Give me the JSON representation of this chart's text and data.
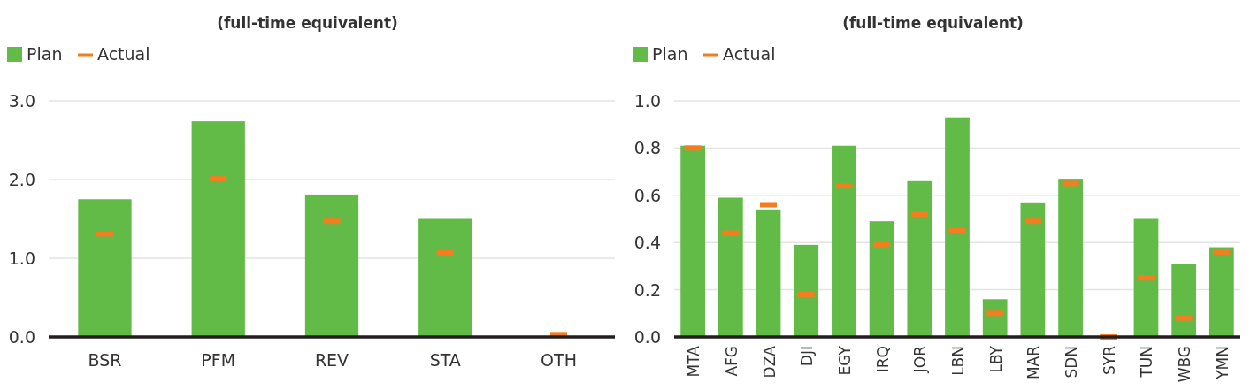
{
  "chart_data": [
    {
      "type": "bar",
      "title": "(full-time equivalent)",
      "categories": [
        "BSR",
        "PFM",
        "REV",
        "STA",
        "OTH"
      ],
      "ylim": [
        0,
        3
      ],
      "yticks": [
        {
          "value": 0,
          "label": "0.0"
        },
        {
          "value": 1,
          "label": "1.0"
        },
        {
          "value": 2,
          "label": "2.0"
        },
        {
          "value": 3,
          "label": "3.0"
        }
      ],
      "grid": "y",
      "legend": "top left",
      "series": [
        {
          "name": "Plan",
          "color": "#62bb46",
          "values": [
            1.75,
            2.74,
            1.81,
            1.5,
            null
          ]
        },
        {
          "name": "Actual",
          "type": "scatter",
          "color": "#f47d20",
          "values": [
            1.31,
            2.01,
            1.47,
            1.07,
            0.03
          ]
        }
      ]
    },
    {
      "type": "bar",
      "title": "(full-time equivalent)",
      "categories": [
        "MTA",
        "AFG",
        "DZA",
        "DJI",
        "EGY",
        "IRQ",
        "JOR",
        "LBN",
        "LBY",
        "MAR",
        "SDN",
        "SYR",
        "TUN",
        "WBG",
        "YMN"
      ],
      "ylim": [
        0,
        1
      ],
      "yticks": [
        {
          "value": 0,
          "label": "0.0"
        },
        {
          "value": 0.2,
          "label": "0.2"
        },
        {
          "value": 0.4,
          "label": "0.4"
        },
        {
          "value": 0.6,
          "label": "0.6"
        },
        {
          "value": 0.8,
          "label": "0.8"
        },
        {
          "value": 1,
          "label": "1.0"
        }
      ],
      "grid": "y",
      "legend": "top left",
      "series": [
        {
          "name": "Plan",
          "color": "#62bb46",
          "values": [
            0.81,
            0.59,
            0.54,
            0.39,
            0.81,
            0.49,
            0.66,
            0.93,
            0.16,
            0.57,
            0.67,
            null,
            0.5,
            0.31,
            0.38
          ]
        },
        {
          "name": "Actual",
          "type": "scatter",
          "color": "#f47d20",
          "values": [
            0.8,
            0.44,
            0.56,
            0.18,
            0.64,
            0.39,
            0.52,
            0.45,
            0.1,
            0.49,
            0.65,
            0,
            0.25,
            0.08,
            0.36
          ]
        }
      ]
    }
  ]
}
